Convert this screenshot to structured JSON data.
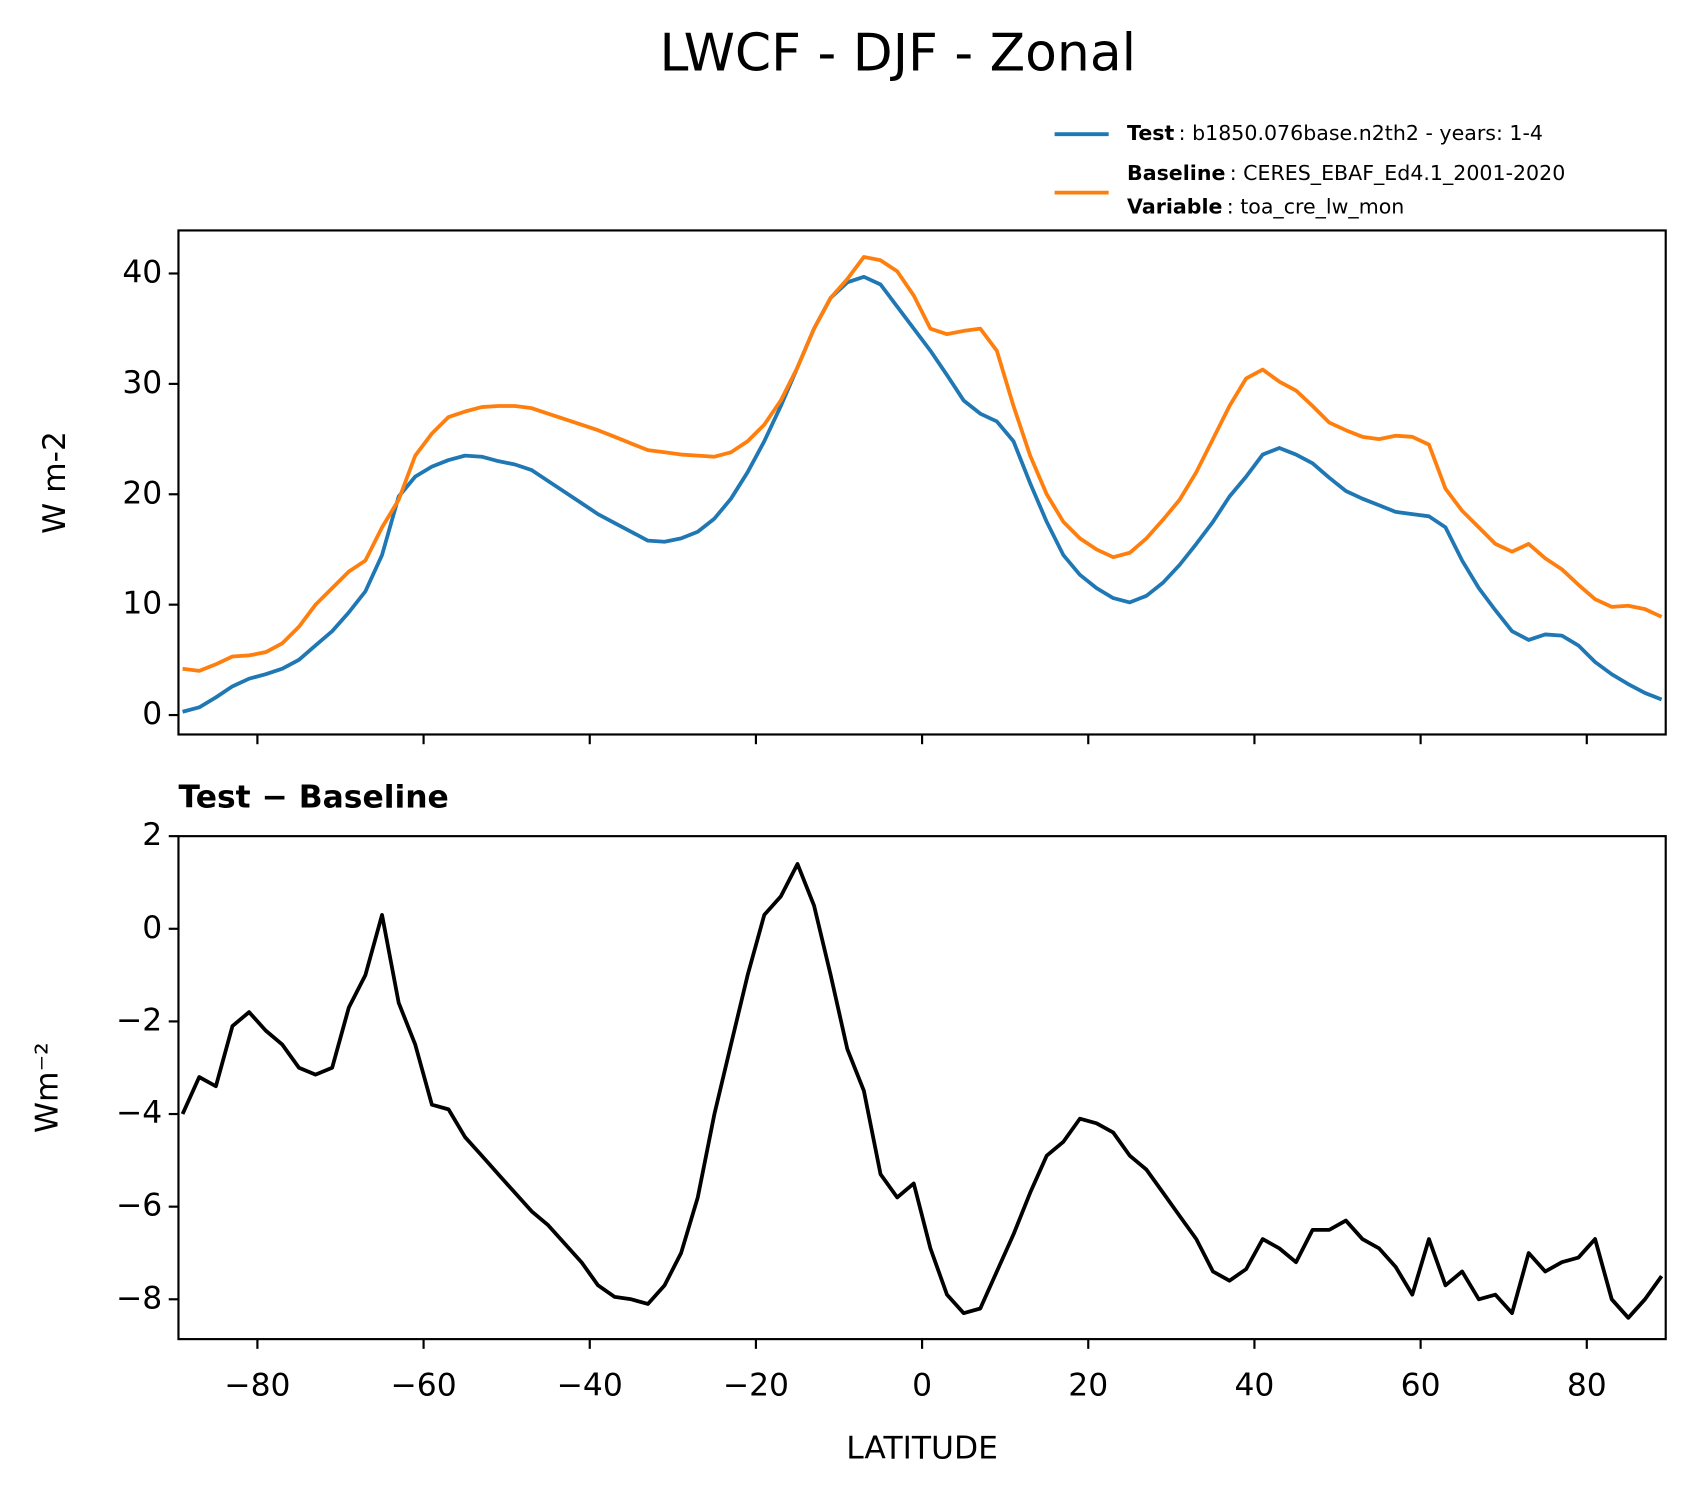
{
  "title": "LWCF - DJF - Zonal",
  "chart_data": [
    {
      "type": "line",
      "ylabel": "W m-2",
      "x": [
        -89,
        -87,
        -85,
        -83,
        -81,
        -79,
        -77,
        -75,
        -73,
        -71,
        -69,
        -67,
        -65,
        -63,
        -61,
        -59,
        -57,
        -55,
        -53,
        -51,
        -49,
        -47,
        -45,
        -43,
        -41,
        -39,
        -37,
        -35,
        -33,
        -31,
        -29,
        -27,
        -25,
        -23,
        -21,
        -19,
        -17,
        -15,
        -13,
        -11,
        -9,
        -7,
        -5,
        -3,
        -1,
        1,
        3,
        5,
        7,
        9,
        11,
        13,
        15,
        17,
        19,
        21,
        23,
        25,
        27,
        29,
        31,
        33,
        35,
        37,
        39,
        41,
        43,
        45,
        47,
        49,
        51,
        53,
        55,
        57,
        59,
        61,
        63,
        65,
        67,
        69,
        71,
        73,
        75,
        77,
        79,
        81,
        83,
        85,
        87,
        89
      ],
      "series": [
        {
          "name": "Test",
          "description": ": b1850.076base.n2th2 - years: 1-4",
          "color": "#1f77b4",
          "values": [
            0.3,
            0.7,
            1.6,
            2.6,
            3.3,
            3.7,
            4.2,
            5.0,
            6.3,
            7.6,
            9.3,
            11.2,
            14.5,
            19.8,
            21.6,
            22.5,
            23.1,
            23.5,
            23.4,
            23.0,
            22.7,
            22.2,
            21.2,
            20.2,
            19.2,
            18.2,
            17.4,
            16.6,
            15.8,
            15.7,
            16.0,
            16.6,
            17.8,
            19.6,
            22.0,
            24.8,
            28.0,
            31.5,
            35.0,
            37.8,
            39.2,
            39.7,
            39.0,
            37.0,
            35.0,
            33.0,
            30.8,
            28.5,
            27.3,
            26.6,
            24.8,
            21.0,
            17.5,
            14.5,
            12.7,
            11.5,
            10.6,
            10.2,
            10.8,
            12.0,
            13.6,
            15.5,
            17.5,
            19.8,
            21.6,
            23.6,
            24.2,
            23.6,
            22.8,
            21.5,
            20.3,
            19.6,
            19.0,
            18.4,
            18.2,
            18.0,
            17.0,
            14.0,
            11.5,
            9.5,
            7.6,
            6.8,
            7.3,
            7.2,
            6.3,
            4.8,
            3.7,
            2.8,
            2.0,
            1.4
          ]
        },
        {
          "name": "Baseline",
          "description": ": CERES_EBAF_Ed4.1_2001-2020",
          "color": "#ff7f0e",
          "values": [
            4.2,
            4.0,
            4.6,
            5.3,
            5.4,
            5.7,
            6.5,
            8.0,
            10.0,
            11.5,
            13.0,
            14.0,
            17.0,
            19.5,
            23.5,
            25.5,
            27.0,
            27.5,
            27.9,
            28.0,
            28.0,
            27.8,
            27.3,
            26.8,
            26.3,
            25.8,
            25.2,
            24.6,
            24.0,
            23.8,
            23.6,
            23.5,
            23.4,
            23.8,
            24.8,
            26.3,
            28.5,
            31.5,
            35.0,
            37.8,
            39.5,
            41.5,
            41.2,
            40.2,
            38.0,
            35.0,
            34.5,
            34.8,
            35.0,
            33.0,
            28.0,
            23.5,
            20.0,
            17.5,
            16.0,
            15.0,
            14.3,
            14.7,
            16.0,
            17.7,
            19.5,
            22.0,
            25.0,
            28.0,
            30.5,
            31.3,
            30.2,
            29.4,
            28.0,
            26.5,
            25.8,
            25.2,
            25.0,
            25.3,
            25.2,
            24.5,
            20.5,
            18.5,
            17.0,
            15.5,
            14.8,
            15.5,
            14.2,
            13.2,
            11.8,
            10.5,
            9.8,
            9.9,
            9.6,
            8.9
          ]
        }
      ],
      "legend_extra": {
        "name": "Variable",
        "description": ": toa_cre_lw_mon"
      },
      "xlim": [
        -89.5,
        89.5
      ],
      "xticks": [
        -80,
        -60,
        -40,
        -20,
        0,
        20,
        40,
        60,
        80
      ],
      "ylim": [
        -1.76,
        43.9
      ],
      "yticks": [
        0,
        10,
        20,
        30,
        40
      ]
    },
    {
      "type": "line",
      "title": "Test − Baseline",
      "xlabel": "LATITUDE",
      "ylabel": "Wm⁻²",
      "x": [
        -89,
        -87,
        -85,
        -83,
        -81,
        -79,
        -77,
        -75,
        -73,
        -71,
        -69,
        -67,
        -65,
        -63,
        -61,
        -59,
        -57,
        -55,
        -53,
        -51,
        -49,
        -47,
        -45,
        -43,
        -41,
        -39,
        -37,
        -35,
        -33,
        -31,
        -29,
        -27,
        -25,
        -23,
        -21,
        -19,
        -17,
        -15,
        -13,
        -11,
        -9,
        -7,
        -5,
        -3,
        -1,
        1,
        3,
        5,
        7,
        9,
        11,
        13,
        15,
        17,
        19,
        21,
        23,
        25,
        27,
        29,
        31,
        33,
        35,
        37,
        39,
        41,
        43,
        45,
        47,
        49,
        51,
        53,
        55,
        57,
        59,
        61,
        63,
        65,
        67,
        69,
        71,
        73,
        75,
        77,
        79,
        81,
        83,
        85,
        87,
        89
      ],
      "series": [
        {
          "color": "#000000",
          "values": [
            -4.0,
            -3.2,
            -3.4,
            -2.1,
            -1.8,
            -2.2,
            -2.5,
            -3.0,
            -3.15,
            -3.0,
            -1.7,
            -1.0,
            0.3,
            -1.6,
            -2.5,
            -3.8,
            -3.9,
            -4.5,
            -4.9,
            -5.3,
            -5.7,
            -6.1,
            -6.4,
            -6.8,
            -7.2,
            -7.7,
            -7.95,
            -8.0,
            -8.1,
            -7.7,
            -7.0,
            -5.8,
            -4.0,
            -2.5,
            -1.0,
            0.3,
            0.7,
            1.4,
            0.5,
            -1.0,
            -2.6,
            -3.5,
            -5.3,
            -5.8,
            -5.5,
            -6.9,
            -7.9,
            -8.3,
            -8.2,
            -7.4,
            -6.6,
            -5.7,
            -4.9,
            -4.6,
            -4.1,
            -4.2,
            -4.4,
            -4.9,
            -5.2,
            -5.7,
            -6.2,
            -6.7,
            -7.4,
            -7.6,
            -7.35,
            -6.7,
            -6.9,
            -7.2,
            -6.5,
            -6.5,
            -6.3,
            -6.7,
            -6.9,
            -7.3,
            -7.9,
            -6.7,
            -7.7,
            -7.4,
            -8.0,
            -7.9,
            -8.3,
            -7.0,
            -7.4,
            -7.2,
            -7.1,
            -6.7,
            -8.0,
            -8.4,
            -8.0,
            -7.5
          ]
        }
      ],
      "xlim": [
        -89.5,
        89.5
      ],
      "xticks": [
        {
          "value": -80,
          "label": "−80"
        },
        {
          "value": -60,
          "label": "−60"
        },
        {
          "value": -40,
          "label": "−40"
        },
        {
          "value": -20,
          "label": "−20"
        },
        0,
        20,
        40,
        60,
        80
      ],
      "ylim": [
        -8.86,
        2.0
      ],
      "yticks": [
        {
          "value": -8,
          "label": "−8"
        },
        {
          "value": -6,
          "label": "−6"
        },
        {
          "value": -4,
          "label": "−4"
        },
        {
          "value": -2,
          "label": "−2"
        },
        0,
        2
      ]
    }
  ]
}
